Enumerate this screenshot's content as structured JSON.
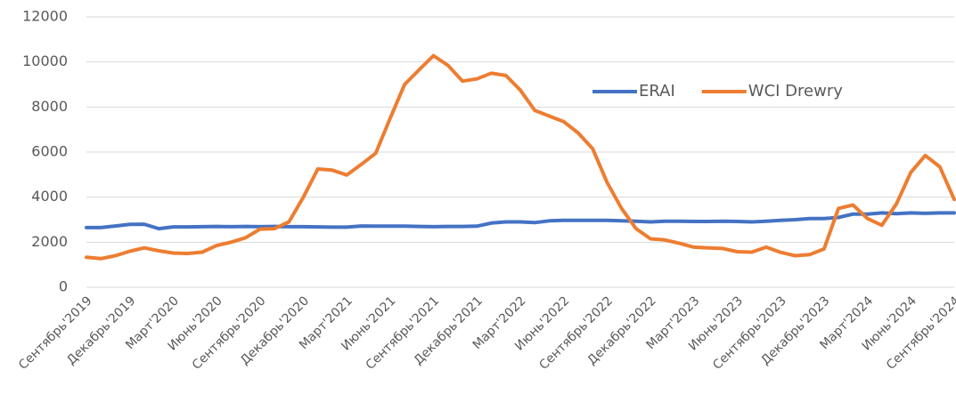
{
  "chart_data": {
    "type": "line",
    "categories": [
      "Сентябрь'2019",
      null,
      null,
      "Декабрь'2019",
      null,
      null,
      "Март'2020",
      null,
      null,
      "Июнь'2020",
      null,
      null,
      "Сентябрь'2020",
      null,
      null,
      "Декабрь'2020",
      null,
      null,
      "Март'2021",
      null,
      null,
      "Июнь'2021",
      null,
      null,
      "Сентябрь'2021",
      null,
      null,
      "Декабрь'2021",
      null,
      null,
      "Март'2022",
      null,
      null,
      "Июнь'2022",
      null,
      null,
      "Сентябрь'2022",
      null,
      null,
      "Декабрь'2022",
      null,
      null,
      "Март'2023",
      null,
      null,
      "Июнь'2023",
      null,
      null,
      "Сентябрь'2023",
      null,
      null,
      "Декабрь'2023",
      null,
      null,
      "Март'2024",
      null,
      null,
      "Июнь'2024",
      null,
      null,
      "Сентябрь'2024"
    ],
    "series": [
      {
        "name": "ERAI",
        "color": "#4472c4",
        "values": [
          2650,
          2650,
          2720,
          2790,
          2800,
          2600,
          2680,
          2680,
          2690,
          2700,
          2690,
          2700,
          2690,
          2700,
          2690,
          2690,
          2680,
          2670,
          2670,
          2720,
          2710,
          2710,
          2710,
          2700,
          2690,
          2700,
          2700,
          2710,
          2850,
          2900,
          2900,
          2870,
          2950,
          2970,
          2970,
          2970,
          2970,
          2950,
          2930,
          2900,
          2930,
          2930,
          2920,
          2920,
          2930,
          2920,
          2900,
          2930,
          2970,
          3000,
          3050,
          3050,
          3100,
          3250,
          3250,
          3300,
          3270,
          3300,
          3280,
          3300,
          3300
        ]
      },
      {
        "name": "WCI Drewry",
        "color": "#ed7d31",
        "values": [
          1330,
          1270,
          1400,
          1600,
          1750,
          1620,
          1520,
          1500,
          1560,
          1850,
          2000,
          2200,
          2580,
          2600,
          2900,
          4000,
          5250,
          5200,
          4980,
          5450,
          5950,
          7500,
          9000,
          9650,
          10280,
          9850,
          9150,
          9250,
          9500,
          9400,
          8750,
          7850,
          7600,
          7350,
          6850,
          6150,
          4650,
          3500,
          2600,
          2150,
          2100,
          1950,
          1780,
          1750,
          1720,
          1580,
          1560,
          1780,
          1550,
          1400,
          1450,
          1700,
          3500,
          3650,
          3050,
          2750,
          3700,
          5100,
          5850,
          5350,
          3900
        ]
      }
    ],
    "ylim": [
      0,
      12000
    ],
    "yticks": [
      0,
      2000,
      4000,
      6000,
      8000,
      10000,
      12000
    ],
    "grid": true,
    "legend": "top-right"
  }
}
